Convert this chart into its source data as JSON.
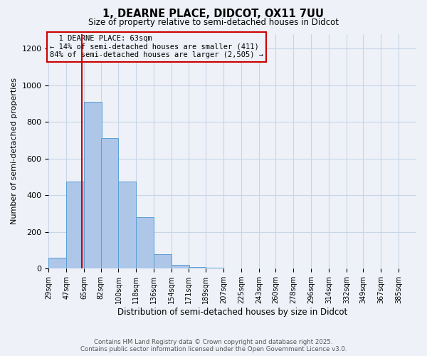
{
  "title": "1, DEARNE PLACE, DIDCOT, OX11 7UU",
  "subtitle": "Size of property relative to semi-detached houses in Didcot",
  "xlabel": "Distribution of semi-detached houses by size in Didcot",
  "ylabel": "Number of semi-detached properties",
  "categories": [
    "29sqm",
    "47sqm",
    "65sqm",
    "82sqm",
    "100sqm",
    "118sqm",
    "136sqm",
    "154sqm",
    "171sqm",
    "189sqm",
    "207sqm",
    "225sqm",
    "243sqm",
    "260sqm",
    "278sqm",
    "296sqm",
    "314sqm",
    "332sqm",
    "349sqm",
    "367sqm",
    "385sqm"
  ],
  "bin_edges": [
    29,
    47,
    65,
    82,
    100,
    118,
    136,
    154,
    171,
    189,
    207,
    225,
    243,
    260,
    278,
    296,
    314,
    332,
    349,
    367,
    385
  ],
  "bin_width": 18,
  "values": [
    60,
    475,
    910,
    710,
    475,
    280,
    80,
    20,
    10,
    5,
    0,
    0,
    0,
    0,
    0,
    0,
    0,
    0,
    0,
    0,
    0
  ],
  "bar_color": "#aec6e8",
  "bar_edge_color": "#5a9fd4",
  "property_line_x": 63,
  "property_label": "1 DEARNE PLACE: 63sqm",
  "pct_smaller": 14,
  "pct_larger": 84,
  "n_smaller": 411,
  "n_larger": 2505,
  "annotation_box_color": "#cc0000",
  "ylim": [
    0,
    1280
  ],
  "yticks": [
    0,
    200,
    400,
    600,
    800,
    1000,
    1200
  ],
  "grid_color": "#c8d4e8",
  "bg_color": "#eef2f8",
  "footer_line1": "Contains HM Land Registry data © Crown copyright and database right 2025.",
  "footer_line2": "Contains public sector information licensed under the Open Government Licence v3.0."
}
